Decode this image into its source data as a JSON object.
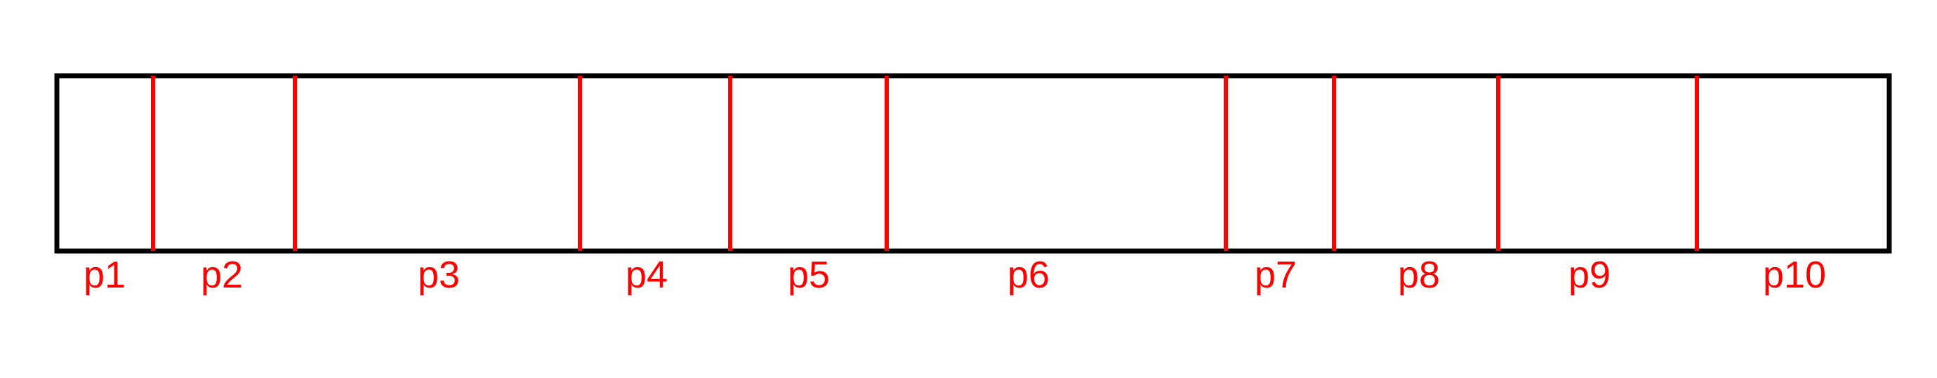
{
  "colors": {
    "background": "#ffffff",
    "frame": "#000000",
    "divider": "#ff0000",
    "label": "#ff0000"
  },
  "partitions": [
    {
      "id": "p1",
      "label": "p1"
    },
    {
      "id": "p2",
      "label": "p2"
    },
    {
      "id": "p3",
      "label": "p3"
    },
    {
      "id": "p4",
      "label": "p4"
    },
    {
      "id": "p5",
      "label": "p5"
    },
    {
      "id": "p6",
      "label": "p6"
    },
    {
      "id": "p7",
      "label": "p7"
    },
    {
      "id": "p8",
      "label": "p8"
    },
    {
      "id": "p9",
      "label": "p9"
    },
    {
      "id": "p10",
      "label": "p10"
    }
  ]
}
